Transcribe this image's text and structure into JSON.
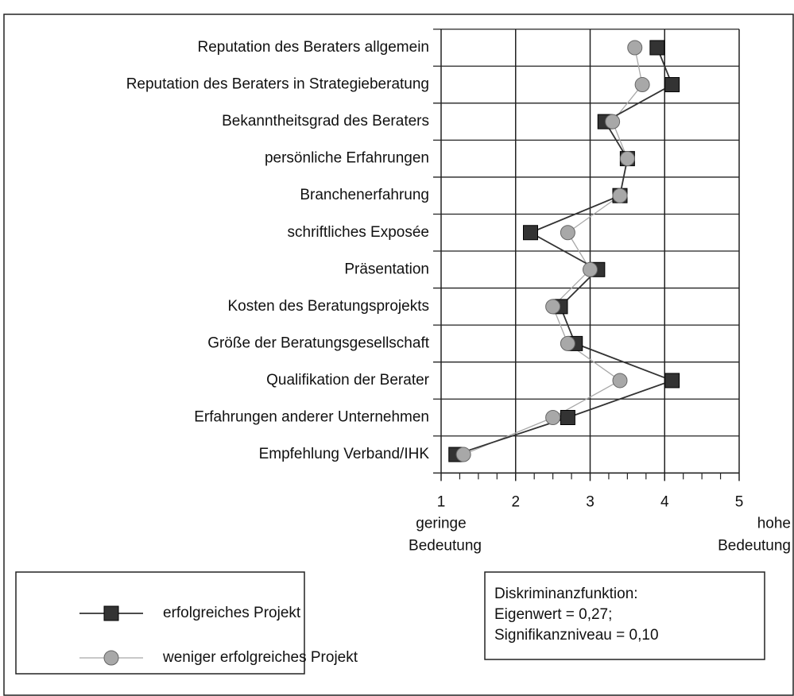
{
  "chart_data": {
    "type": "line",
    "orientation": "horizontal",
    "categories": [
      "Reputation des Beraters allgemein",
      "Reputation des Beraters in Strategieberatung",
      "Bekanntheitsgrad des Beraters",
      "persönliche Erfahrungen",
      "Branchenerfahrung",
      "schriftliches Exposée",
      "Präsentation",
      "Kosten des Beratungsprojekts",
      "Größe der Beratungsgesellschaft",
      "Qualifikation der Berater",
      "Erfahrungen anderer Unternehmen",
      "Empfehlung Verband/IHK"
    ],
    "series": [
      {
        "name": "erfolgreiches Projekt",
        "color": "#333333",
        "marker": "square",
        "values": [
          3.9,
          4.1,
          3.2,
          3.5,
          3.4,
          2.2,
          3.1,
          2.6,
          2.8,
          4.1,
          2.7,
          1.2
        ]
      },
      {
        "name": "weniger erfolgreiches Projekt",
        "color": "#a8a8a8",
        "marker": "circle",
        "values": [
          3.6,
          3.7,
          3.3,
          3.5,
          3.4,
          2.7,
          3.0,
          2.5,
          2.7,
          3.4,
          2.5,
          1.3
        ]
      }
    ],
    "xlim": [
      1,
      5
    ],
    "xticks": [
      1,
      2,
      3,
      4,
      5
    ],
    "xminorticks": [
      1.25,
      1.5,
      1.75,
      2.25,
      2.5,
      2.75,
      3.25,
      3.5,
      3.75,
      4.25,
      4.5,
      4.75
    ],
    "grid": true,
    "x_axis_annotations": {
      "left": [
        "geringe",
        "Bedeutung"
      ],
      "right": [
        "hohe",
        "Bedeutung"
      ]
    },
    "annotation": [
      "Diskriminanzfunktion:",
      "Eigenwert = 0,27;",
      "Signifikanzniveau = 0,10"
    ]
  }
}
